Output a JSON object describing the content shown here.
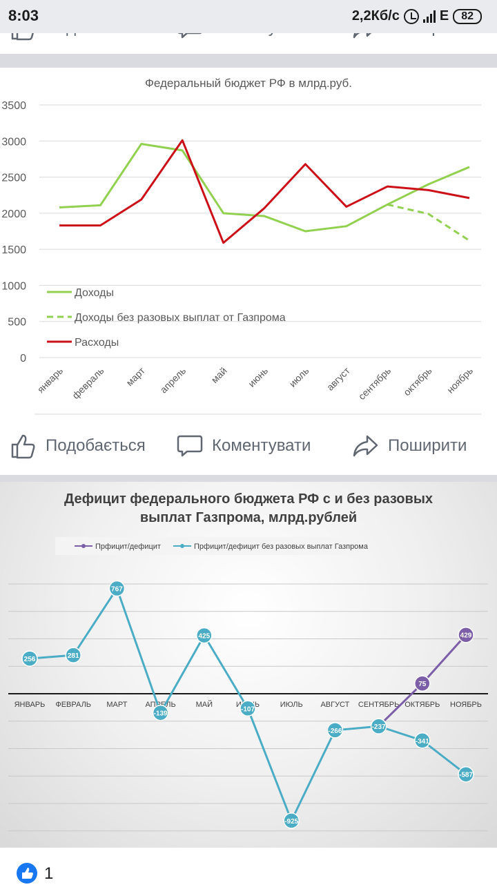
{
  "status_bar": {
    "time": "8:03",
    "speed": "2,2Кб/с",
    "network": "E",
    "battery": "82"
  },
  "actions": {
    "like": "Подобається",
    "comment": "Коментувати",
    "share": "Поширити"
  },
  "cut_actions": {
    "like": "Подобається",
    "comment": "Коментувати",
    "share": "Поширити"
  },
  "chart_data": [
    {
      "type": "line",
      "title": "Федеральный бюджет РФ в млрд.руб.",
      "categories": [
        "январь",
        "февраль",
        "март",
        "апрель",
        "май",
        "июнь",
        "июль",
        "август",
        "сентябрь",
        "октябрь",
        "ноябрь"
      ],
      "yticks": [
        "0",
        "500",
        "1000",
        "1500",
        "2000",
        "2500",
        "3000",
        "3500"
      ],
      "ylim": [
        0,
        3500
      ],
      "grid": true,
      "legend_position": "inside-left",
      "series": [
        {
          "name": "Доходы",
          "color": "#92d050",
          "dash": false,
          "x": [
            0,
            1,
            2,
            3,
            4,
            5,
            6,
            7,
            8,
            9,
            10
          ],
          "values": [
            2080,
            2110,
            2960,
            2870,
            2000,
            1960,
            1750,
            1820,
            2120,
            2400,
            2640
          ]
        },
        {
          "name": "Доходы без разовых выплат от Газпрома",
          "color": "#92d050",
          "dash": true,
          "x": [
            8,
            9,
            10
          ],
          "values": [
            2120,
            1990,
            1620
          ]
        },
        {
          "name": "Расходы",
          "color": "#cc1018",
          "dash": false,
          "x": [
            0,
            1,
            2,
            3,
            4,
            5,
            6,
            7,
            8,
            9,
            10
          ],
          "values": [
            1830,
            1830,
            2190,
            3010,
            1590,
            2070,
            2680,
            2090,
            2370,
            2320,
            2210
          ]
        }
      ]
    },
    {
      "type": "line",
      "title_lines": [
        "Дефицит федерального бюджета РФ с и без разовых",
        "выплат Газпрома, млрд.рублей"
      ],
      "categories": [
        "ЯНВАРЬ",
        "ФЕВРАЛЬ",
        "МАРТ",
        "АПРЕЛЬ",
        "МАЙ",
        "ИЮНЬ",
        "ИЮЛЬ",
        "АВГУСТ",
        "СЕНТЯБРЬ",
        "ОКТЯБРЬ",
        "НОЯБРЬ"
      ],
      "ylim": [
        -1000,
        1000
      ],
      "grid": true,
      "legend_position": "top-left",
      "series": [
        {
          "name": "Прфицит/дефицит",
          "color": "#7b5ea7",
          "x": [
            8,
            9,
            10
          ],
          "values": [
            -237,
            75,
            429
          ],
          "labels": [
            "",
            "75",
            "429"
          ]
        },
        {
          "name": "Прфицит/дефицит без разовых выплат Газпрома",
          "color": "#4bacc6",
          "x": [
            0,
            1,
            2,
            3,
            4,
            5,
            6,
            7,
            8,
            9,
            10
          ],
          "values": [
            256,
            281,
            767,
            -139,
            425,
            -107,
            -925,
            -266,
            -237,
            -341,
            -587
          ],
          "labels": [
            "256",
            "281",
            "767",
            "-139",
            "425",
            "-107",
            "-925",
            "-266",
            "-237",
            "-341",
            "-587"
          ]
        }
      ]
    }
  ],
  "reactions": {
    "count": "1"
  }
}
